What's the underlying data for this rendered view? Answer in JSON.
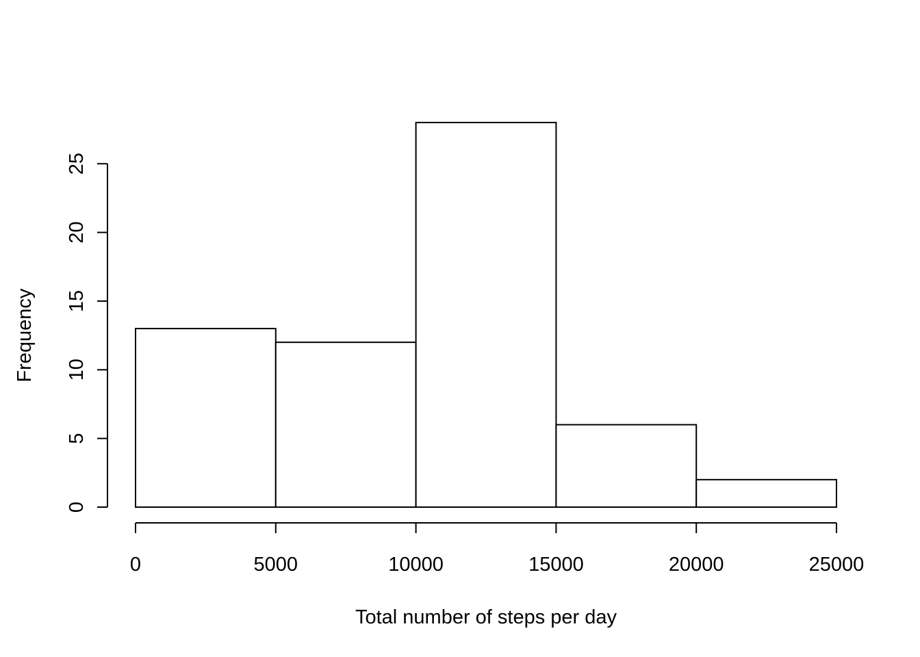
{
  "chart_data": {
    "type": "bar",
    "title": "",
    "xlabel": "Total number of steps per day",
    "ylabel": "Frequency",
    "bins": [
      {
        "from": 0,
        "to": 5000,
        "count": 13
      },
      {
        "from": 5000,
        "to": 10000,
        "count": 12
      },
      {
        "from": 10000,
        "to": 15000,
        "count": 28
      },
      {
        "from": 15000,
        "to": 20000,
        "count": 6
      },
      {
        "from": 20000,
        "to": 25000,
        "count": 2
      }
    ],
    "xlim": [
      0,
      25000
    ],
    "ylim": [
      0,
      28
    ],
    "x_ticks": [
      0,
      5000,
      10000,
      15000,
      20000,
      25000
    ],
    "y_ticks": [
      0,
      5,
      10,
      15,
      20,
      25
    ],
    "x_tick_labels": [
      "0",
      "5000",
      "10000",
      "15000",
      "20000",
      "25000"
    ],
    "y_tick_labels": [
      "0",
      "5",
      "10",
      "15",
      "20",
      "25"
    ],
    "grid": false,
    "legend": "none",
    "bar_fill": "#ffffff",
    "bar_stroke": "#000000"
  }
}
